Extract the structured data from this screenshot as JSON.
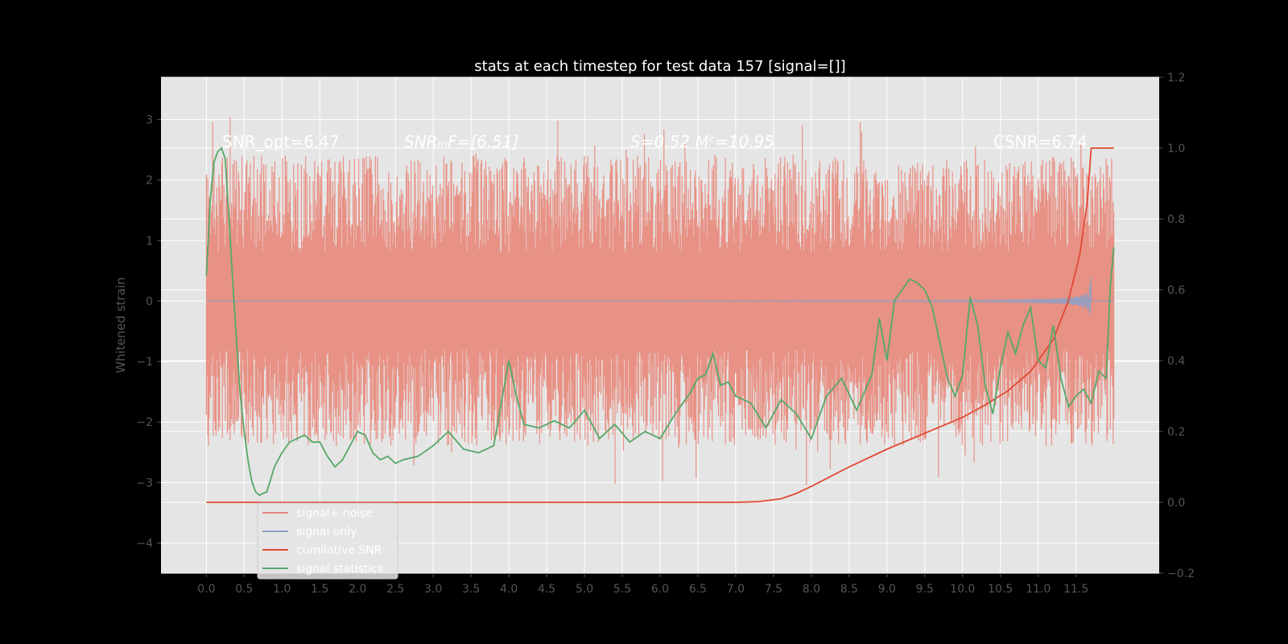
{
  "colors": {
    "background": "#000000",
    "axes_face": "#e5e5e5",
    "grid": "#ffffff",
    "tick_text": "#555555",
    "noise": "#e8877a",
    "signal_only": "#8ea0c4",
    "cumulative_snr": "#e24a33",
    "signal_statistics": "#55a868"
  },
  "chart_data": {
    "type": "line",
    "title": "stats at each timestep for test data 157 [signal=[]]",
    "ylabel": "Whitened strain",
    "xlim": [
      -0.6,
      12.6
    ],
    "ylim": [
      -4.5,
      3.7
    ],
    "ylim_right": [
      -0.2,
      1.2
    ],
    "xticks": [
      "0.0",
      "0.5",
      "1.0",
      "1.5",
      "2.0",
      "2.5",
      "3.0",
      "3.5",
      "4.0",
      "4.5",
      "5.0",
      "5.5",
      "6.0",
      "6.5",
      "7.0",
      "7.5",
      "8.0",
      "8.5",
      "9.0",
      "9.5",
      "10.0",
      "10.5",
      "11.0",
      "11.5"
    ],
    "yticks": [
      "−4",
      "−3",
      "−2",
      "−1",
      "0",
      "1",
      "2",
      "3"
    ],
    "yticks_right": [
      "−0.2",
      "0.0",
      "0.2",
      "0.4",
      "0.6",
      "0.8",
      "1.0",
      "1.2"
    ],
    "annotations": {
      "snr_opt": "SNR_opt=6.47",
      "snr_mf": "SNRₘF=[6.51]",
      "s_mc": "S=0.52  Mᶜ=10.95",
      "csnr": "CSNR=6.74"
    },
    "legend": {
      "location": "lower-left",
      "entries": [
        "signal+ noise",
        "signal only",
        "cumilative SNR",
        "signal statistics"
      ]
    },
    "series": [
      {
        "name": "signal+ noise",
        "axis": "left",
        "noise_amplitude": [
          -3.5,
          3.5
        ],
        "x_range": [
          0.0,
          12.0
        ]
      },
      {
        "name": "signal only",
        "axis": "left",
        "chirp_peak_amplitude": 0.95,
        "chirp_end_x": 11.7
      },
      {
        "name": "cumilative SNR",
        "axis": "right",
        "x": [
          0.0,
          7.0,
          7.3,
          7.6,
          7.8,
          8.0,
          8.5,
          9.0,
          9.5,
          10.0,
          10.3,
          10.6,
          10.9,
          11.2,
          11.4,
          11.55,
          11.65,
          11.7,
          12.0
        ],
        "y": [
          0.0,
          0.0,
          0.002,
          0.01,
          0.025,
          0.045,
          0.1,
          0.15,
          0.195,
          0.24,
          0.275,
          0.315,
          0.37,
          0.46,
          0.57,
          0.7,
          0.85,
          1.0,
          1.0
        ]
      },
      {
        "name": "signal statistics",
        "axis": "right",
        "x": [
          0.0,
          0.05,
          0.1,
          0.15,
          0.2,
          0.25,
          0.3,
          0.35,
          0.4,
          0.45,
          0.5,
          0.55,
          0.6,
          0.65,
          0.7,
          0.8,
          0.9,
          1.0,
          1.1,
          1.2,
          1.3,
          1.4,
          1.5,
          1.6,
          1.7,
          1.8,
          2.0,
          2.1,
          2.2,
          2.3,
          2.4,
          2.5,
          2.6,
          2.8,
          3.0,
          3.2,
          3.4,
          3.6,
          3.8,
          4.0,
          4.1,
          4.2,
          4.4,
          4.6,
          4.8,
          5.0,
          5.2,
          5.4,
          5.6,
          5.8,
          6.0,
          6.2,
          6.4,
          6.5,
          6.6,
          6.7,
          6.8,
          6.9,
          7.0,
          7.2,
          7.4,
          7.6,
          7.8,
          8.0,
          8.2,
          8.4,
          8.6,
          8.8,
          8.9,
          9.0,
          9.1,
          9.2,
          9.3,
          9.4,
          9.5,
          9.6,
          9.7,
          9.8,
          9.9,
          10.0,
          10.1,
          10.2,
          10.3,
          10.4,
          10.5,
          10.6,
          10.7,
          10.8,
          10.9,
          11.0,
          11.1,
          11.2,
          11.3,
          11.4,
          11.5,
          11.6,
          11.7,
          11.8,
          11.9,
          11.95,
          12.0
        ],
        "y": [
          0.64,
          0.85,
          0.96,
          0.99,
          1.0,
          0.97,
          0.8,
          0.62,
          0.45,
          0.3,
          0.2,
          0.12,
          0.06,
          0.03,
          0.02,
          0.03,
          0.1,
          0.14,
          0.17,
          0.18,
          0.19,
          0.17,
          0.17,
          0.13,
          0.1,
          0.12,
          0.2,
          0.19,
          0.14,
          0.12,
          0.13,
          0.11,
          0.12,
          0.13,
          0.16,
          0.2,
          0.15,
          0.14,
          0.16,
          0.4,
          0.3,
          0.22,
          0.21,
          0.23,
          0.21,
          0.26,
          0.18,
          0.22,
          0.17,
          0.2,
          0.18,
          0.25,
          0.31,
          0.35,
          0.36,
          0.42,
          0.33,
          0.34,
          0.3,
          0.28,
          0.21,
          0.29,
          0.25,
          0.18,
          0.3,
          0.35,
          0.26,
          0.36,
          0.52,
          0.4,
          0.57,
          0.6,
          0.63,
          0.62,
          0.6,
          0.55,
          0.45,
          0.35,
          0.3,
          0.36,
          0.58,
          0.5,
          0.33,
          0.25,
          0.38,
          0.48,
          0.42,
          0.5,
          0.55,
          0.4,
          0.38,
          0.5,
          0.35,
          0.27,
          0.3,
          0.32,
          0.28,
          0.37,
          0.35,
          0.6,
          0.72
        ]
      }
    ]
  }
}
